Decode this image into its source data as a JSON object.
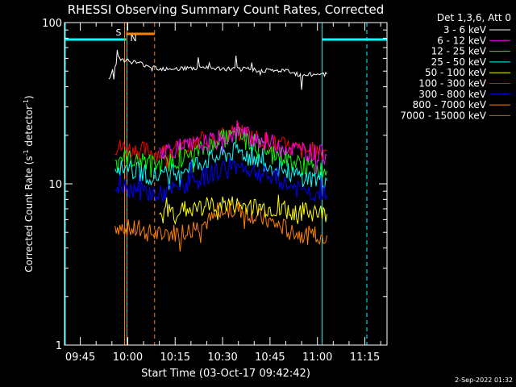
{
  "chart_data": {
    "type": "line",
    "title": "RHESSI Observing Summary Count Rates, Corrected",
    "xlabel": "Start Time (03-Oct-17 09:42:42)",
    "ylabel": "Corrected Count Rate (s",
    "ylabel_sup1": "-1",
    "ylabel_mid": " detector",
    "ylabel_sup2": "-1",
    "ylabel_end": ")",
    "yscale": "log",
    "ylim": [
      1,
      100
    ],
    "xlim": [
      "09:40",
      "11:22"
    ],
    "x_ticks": [
      "09:45",
      "10:00",
      "10:15",
      "10:30",
      "10:45",
      "11:00",
      "11:15"
    ],
    "y_ticks": [
      "1",
      "10",
      "100"
    ],
    "legend_header": "Det 1,3,6, Att 0",
    "legend_position": "top-right",
    "series": [
      {
        "name": "3 - 6 keV",
        "color": "#ffffff",
        "x": [
          "09:54",
          "09:56",
          "09:57",
          "10:10",
          "10:25",
          "10:40",
          "10:50",
          "10:55",
          "11:00",
          "11:03"
        ],
        "y": [
          45,
          55,
          60,
          52,
          52,
          51,
          50,
          47,
          48,
          48
        ]
      },
      {
        "name": "6 - 12 keV",
        "color": "#ff00ff",
        "x": [
          "10:10",
          "10:20",
          "10:30",
          "10:35",
          "10:45",
          "10:55",
          "11:03"
        ],
        "y": [
          16,
          17,
          19,
          21,
          18,
          16,
          15
        ]
      },
      {
        "name": "12 - 25 keV",
        "color": "#00ff00",
        "x": [
          "09:56",
          "10:10",
          "10:20",
          "10:30",
          "10:35",
          "10:45",
          "10:55",
          "11:03"
        ],
        "y": [
          15,
          13,
          15,
          19,
          20,
          16,
          13,
          12
        ]
      },
      {
        "name": "25 - 50 keV",
        "color": "#00ffff",
        "x": [
          "09:56",
          "10:10",
          "10:20",
          "10:30",
          "10:35",
          "10:45",
          "10:55",
          "11:03"
        ],
        "y": [
          13,
          11,
          13,
          15,
          16,
          13,
          11,
          10.5
        ]
      },
      {
        "name": "50 - 100 keV",
        "color": "#ffff00",
        "x": [
          "10:10",
          "10:20",
          "10:30",
          "10:45",
          "11:03"
        ],
        "y": [
          6.5,
          7,
          7.5,
          7,
          6.5
        ]
      },
      {
        "name": "100 - 300 keV",
        "color": "#ff0000",
        "x": [
          "09:56",
          "10:10",
          "10:20",
          "10:30",
          "10:35",
          "10:45",
          "10:55",
          "11:03"
        ],
        "y": [
          17,
          15.5,
          17,
          20,
          21,
          18,
          16,
          16
        ]
      },
      {
        "name": "300 - 800 keV",
        "color": "#0000ff",
        "x": [
          "09:56",
          "10:10",
          "10:20",
          "10:30",
          "10:35",
          "10:45",
          "10:55",
          "11:03"
        ],
        "y": [
          10,
          8.5,
          10,
          12.5,
          13,
          11,
          9,
          8.5
        ]
      },
      {
        "name": "800 - 7000 keV",
        "color": "#ff8000",
        "x": [
          "09:56",
          "10:10",
          "10:20",
          "10:30",
          "10:35",
          "10:45",
          "10:55",
          "11:03"
        ],
        "y": [
          5.5,
          4.8,
          5.2,
          6.5,
          7,
          5.8,
          4.8,
          4.8
        ]
      },
      {
        "name": "7000 - 15000 keV",
        "color": "#a08000",
        "x": [],
        "y": []
      }
    ],
    "annotations": [
      {
        "text": "S",
        "color": "#ff8000"
      },
      {
        "text": "N",
        "color": "#00ffff"
      }
    ],
    "saa_interval": [
      "09:59.5",
      "10:08.5"
    ],
    "night_intervals": [
      [
        "09:40",
        "09:59.5"
      ],
      [
        "11:01.5",
        "11:22"
      ]
    ],
    "colors": {
      "axes": "#ffffff",
      "saa": "#ff8000",
      "night": "#00ffff",
      "background": "#000000"
    }
  },
  "timestamp": "2-Sep-2022 01:32"
}
